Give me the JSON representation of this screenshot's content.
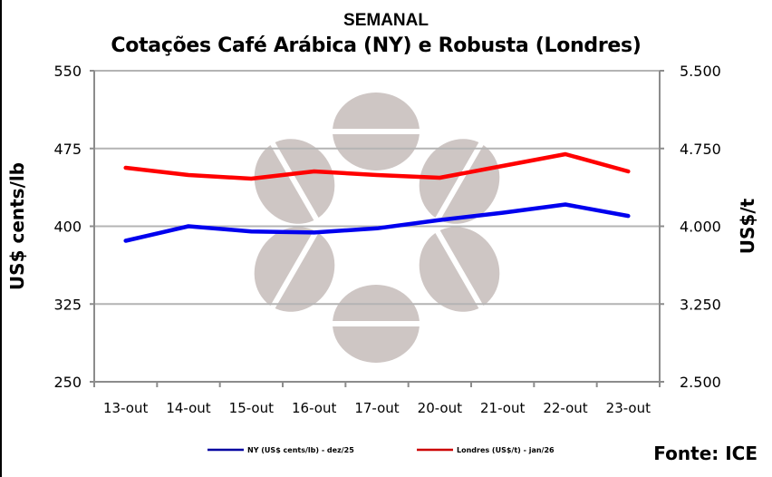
{
  "header": {
    "title": "SEMANAL",
    "subtitle": "Cotações Café Arábica (NY) e Robusta (Londres)"
  },
  "source": "Fonte: ICE",
  "colors": {
    "ny": "#0000ee",
    "londres": "#ff0000",
    "grid": "#b4b4b4",
    "axis": "#8c8c8c",
    "watermark": "#cec6c4"
  },
  "chart_data": {
    "type": "line",
    "title": "SEMANAL — Cotações Café Arábica (NY) e Robusta (Londres)",
    "categories": [
      "13-out",
      "14-out",
      "15-out",
      "16-out",
      "17-out",
      "20-out",
      "21-out",
      "22-out",
      "23-out"
    ],
    "series": [
      {
        "name": "NY (US$ cents/lb) - dez/25",
        "axis": "left",
        "color": "#0000ee",
        "values": [
          386,
          400,
          395,
          394,
          398,
          406,
          413,
          421,
          410
        ]
      },
      {
        "name": "Londres (US$/t) - jan/26",
        "axis": "right",
        "color": "#ff0000",
        "values": [
          4564,
          4494,
          4459,
          4529,
          4494,
          4468,
          4582,
          4695,
          4529
        ]
      }
    ],
    "ylabel": "US$ cents/lb",
    "y2label": "US$/t",
    "ylim": [
      250,
      550
    ],
    "y2lim": [
      2500,
      5500
    ],
    "yticks": [
      "550",
      "475",
      "400",
      "325",
      "250"
    ],
    "y2ticks": [
      "5.500",
      "4.750",
      "4.000",
      "3.250",
      "2.500"
    ],
    "grid": true,
    "legend_position": "bottom"
  }
}
